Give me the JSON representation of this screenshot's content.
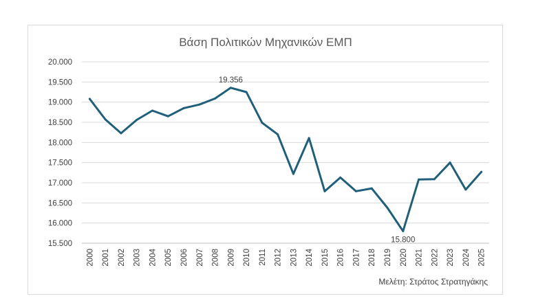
{
  "chart_data": {
    "type": "line",
    "title": "Βάση Πολιτικών Μηχανικών ΕΜΠ",
    "xlabel": "",
    "ylabel": "",
    "credit": "Μελέτη: Στράτος Στρατηγάκης",
    "ylim": [
      15500,
      20000
    ],
    "yticks": [
      15500,
      16000,
      16500,
      17000,
      17500,
      18000,
      18500,
      19000,
      19500,
      20000
    ],
    "ytick_labels": [
      "15.500",
      "16.000",
      "16.500",
      "17.000",
      "17.500",
      "18.000",
      "18.500",
      "19.000",
      "19.500",
      "20.000"
    ],
    "grid": "horizontal",
    "line_color": "#1f5f7a",
    "categories": [
      "2000",
      "2001",
      "2002",
      "2003",
      "2004",
      "2005",
      "2006",
      "2007",
      "2008",
      "2009",
      "2010",
      "2011",
      "2012",
      "2013",
      "2014",
      "2015",
      "2016",
      "2017",
      "2018",
      "2019",
      "2020",
      "2021",
      "2022",
      "2023",
      "2024",
      "2025"
    ],
    "values": [
      19080,
      18570,
      18230,
      18560,
      18790,
      18650,
      18850,
      18940,
      19090,
      19356,
      19250,
      18490,
      18200,
      17220,
      18110,
      16790,
      17130,
      16790,
      16860,
      16380,
      15800,
      17080,
      17090,
      17500,
      16830,
      17270
    ],
    "annotations": [
      {
        "category": "2009",
        "value": 19356,
        "text": "19.356",
        "position": "above"
      },
      {
        "category": "2020",
        "value": 15800,
        "text": "15.800",
        "position": "below"
      }
    ]
  }
}
